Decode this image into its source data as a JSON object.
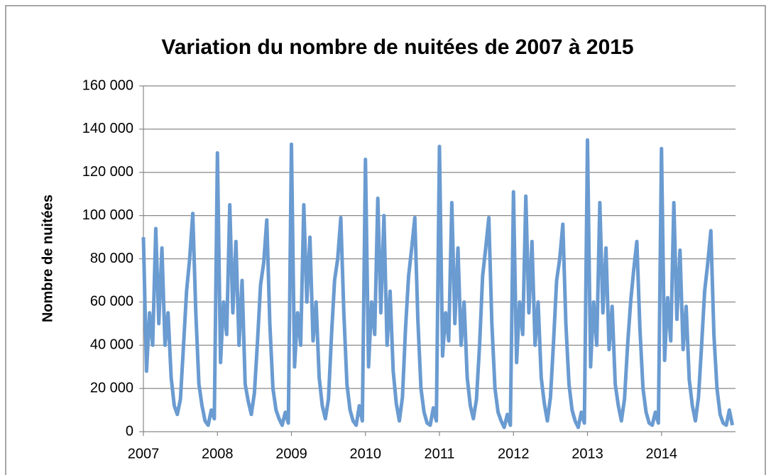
{
  "chart_data": {
    "type": "line",
    "title": "Variation du nombre de nuitées de 2007 à 2015",
    "y_label": "Nombre de nuitées",
    "x": [
      2007,
      2007.042,
      2007.083,
      2007.125,
      2007.167,
      2007.208,
      2007.25,
      2007.292,
      2007.333,
      2007.375,
      2007.417,
      2007.458,
      2007.5,
      2007.542,
      2007.583,
      2007.625,
      2007.667,
      2007.708,
      2007.75,
      2007.792,
      2007.833,
      2007.875,
      2007.917,
      2007.958,
      2008,
      2008.042,
      2008.083,
      2008.125,
      2008.167,
      2008.208,
      2008.25,
      2008.292,
      2008.333,
      2008.375,
      2008.417,
      2008.458,
      2008.5,
      2008.542,
      2008.583,
      2008.625,
      2008.667,
      2008.708,
      2008.75,
      2008.792,
      2008.833,
      2008.875,
      2008.917,
      2008.958,
      2009,
      2009.042,
      2009.083,
      2009.125,
      2009.167,
      2009.208,
      2009.25,
      2009.292,
      2009.333,
      2009.375,
      2009.417,
      2009.458,
      2009.5,
      2009.542,
      2009.583,
      2009.625,
      2009.667,
      2009.708,
      2009.75,
      2009.792,
      2009.833,
      2009.875,
      2009.917,
      2009.958,
      2010,
      2010.042,
      2010.083,
      2010.125,
      2010.167,
      2010.208,
      2010.25,
      2010.292,
      2010.333,
      2010.375,
      2010.417,
      2010.458,
      2010.5,
      2010.542,
      2010.583,
      2010.625,
      2010.667,
      2010.708,
      2010.75,
      2010.792,
      2010.833,
      2010.875,
      2010.917,
      2010.958,
      2011,
      2011.042,
      2011.083,
      2011.125,
      2011.167,
      2011.208,
      2011.25,
      2011.292,
      2011.333,
      2011.375,
      2011.417,
      2011.458,
      2011.5,
      2011.542,
      2011.583,
      2011.625,
      2011.667,
      2011.708,
      2011.75,
      2011.792,
      2011.833,
      2011.875,
      2011.917,
      2011.958,
      2012,
      2012.042,
      2012.083,
      2012.125,
      2012.167,
      2012.208,
      2012.25,
      2012.292,
      2012.333,
      2012.375,
      2012.417,
      2012.458,
      2012.5,
      2012.542,
      2012.583,
      2012.625,
      2012.667,
      2012.708,
      2012.75,
      2012.792,
      2012.833,
      2012.875,
      2012.917,
      2012.958,
      2013,
      2013.042,
      2013.083,
      2013.125,
      2013.167,
      2013.208,
      2013.25,
      2013.292,
      2013.333,
      2013.375,
      2013.417,
      2013.458,
      2013.5,
      2013.542,
      2013.583,
      2013.625,
      2013.667,
      2013.708,
      2013.75,
      2013.792,
      2013.833,
      2013.875,
      2013.917,
      2013.958,
      2014,
      2014.042,
      2014.083,
      2014.125,
      2014.167,
      2014.208,
      2014.25,
      2014.292,
      2014.333,
      2014.375,
      2014.417,
      2014.458,
      2014.5,
      2014.542,
      2014.583,
      2014.625,
      2014.667,
      2014.708,
      2014.75,
      2014.792,
      2014.833,
      2014.875,
      2014.917,
      2014.958
    ],
    "series": [
      {
        "color": "#6a9bd1",
        "values": [
          90000,
          28000,
          55000,
          40000,
          94000,
          50000,
          85000,
          40000,
          55000,
          25000,
          12000,
          8000,
          15000,
          40000,
          65000,
          80000,
          101000,
          55000,
          22000,
          12000,
          5000,
          3000,
          10000,
          6000,
          129000,
          32000,
          60000,
          45000,
          105000,
          55000,
          88000,
          40000,
          70000,
          22000,
          14000,
          8000,
          18000,
          42000,
          68000,
          78000,
          98000,
          50000,
          20000,
          10000,
          6000,
          3000,
          9000,
          4000,
          133000,
          30000,
          55000,
          40000,
          105000,
          60000,
          90000,
          42000,
          60000,
          25000,
          12000,
          6000,
          15000,
          45000,
          70000,
          80000,
          99000,
          55000,
          22000,
          10000,
          5000,
          3000,
          12000,
          5000,
          126000,
          30000,
          60000,
          45000,
          108000,
          55000,
          100000,
          40000,
          65000,
          28000,
          13000,
          5000,
          16000,
          48000,
          72000,
          85000,
          99000,
          52000,
          20000,
          9000,
          4000,
          3000,
          11000,
          5000,
          132000,
          35000,
          55000,
          42000,
          106000,
          50000,
          85000,
          40000,
          60000,
          25000,
          12000,
          6000,
          15000,
          40000,
          72000,
          85000,
          99000,
          50000,
          20000,
          9000,
          5000,
          2000,
          8000,
          3000,
          111000,
          32000,
          60000,
          45000,
          109000,
          55000,
          88000,
          40000,
          60000,
          25000,
          13000,
          5000,
          16000,
          42000,
          70000,
          80000,
          96000,
          50000,
          22000,
          10000,
          5000,
          2000,
          9000,
          4000,
          135000,
          30000,
          60000,
          40000,
          106000,
          55000,
          85000,
          38000,
          58000,
          22000,
          12000,
          5000,
          15000,
          40000,
          60000,
          75000,
          88000,
          48000,
          20000,
          9000,
          4000,
          3000,
          9000,
          4000,
          131000,
          33000,
          62000,
          42000,
          106000,
          52000,
          84000,
          38000,
          58000,
          24000,
          12000,
          5000,
          16000,
          40000,
          65000,
          78000,
          93000,
          45000,
          20000,
          8000,
          4000,
          3000,
          10000,
          3000
        ]
      }
    ],
    "xlim": [
      2007,
      2015
    ],
    "xticks": [
      2007,
      2008,
      2009,
      2010,
      2011,
      2012,
      2013,
      2014
    ],
    "ylim": [
      0,
      160000
    ],
    "yticks": [
      0,
      {
        "value": 20000,
        "label": "20 000"
      },
      {
        "value": 40000,
        "label": "40 000"
      },
      {
        "value": 60000,
        "label": "60 000"
      },
      {
        "value": 80000,
        "label": "80 000"
      },
      {
        "value": 100000,
        "label": "100 000"
      },
      {
        "value": 120000,
        "label": "120 000"
      },
      {
        "value": 140000,
        "label": "140 000"
      },
      {
        "value": 160000,
        "label": "160 000"
      }
    ],
    "grid": true
  }
}
